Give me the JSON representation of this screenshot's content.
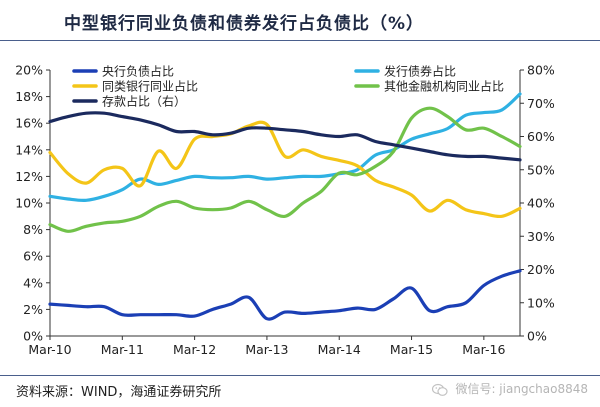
{
  "title": "中型银行同业负债和债券发行占负债比（%）",
  "source": "资料来源：WIND，海通证券研究所",
  "watermark": "微信号: jiangchao8848",
  "chart_data": {
    "type": "line",
    "x_ticks": [
      "Mar-10",
      "Mar-11",
      "Mar-12",
      "Mar-13",
      "Mar-14",
      "Mar-15",
      "Mar-16"
    ],
    "x_range": [
      "2010-03",
      "2016-09"
    ],
    "y_left": {
      "range": [
        0,
        20
      ],
      "ticks": [
        "0%",
        "2%",
        "4%",
        "6%",
        "8%",
        "10%",
        "12%",
        "14%",
        "16%",
        "18%",
        "20%"
      ]
    },
    "y_right": {
      "range": [
        0,
        80
      ],
      "ticks": [
        "0%",
        "10%",
        "20%",
        "30%",
        "40%",
        "50%",
        "60%",
        "70%",
        "80%"
      ]
    },
    "legend_placement": "top",
    "series": [
      {
        "name": "央行负债占比",
        "axis": "left",
        "color": "#1b3fb5",
        "points": [
          [
            "2010-03",
            2.4
          ],
          [
            "2010-06",
            2.3
          ],
          [
            "2010-09",
            2.2
          ],
          [
            "2010-12",
            2.2
          ],
          [
            "2011-03",
            1.6
          ],
          [
            "2011-06",
            1.6
          ],
          [
            "2011-09",
            1.6
          ],
          [
            "2011-12",
            1.6
          ],
          [
            "2012-03",
            1.5
          ],
          [
            "2012-06",
            2.0
          ],
          [
            "2012-09",
            2.4
          ],
          [
            "2012-12",
            2.9
          ],
          [
            "2013-03",
            1.3
          ],
          [
            "2013-06",
            1.8
          ],
          [
            "2013-09",
            1.7
          ],
          [
            "2013-12",
            1.8
          ],
          [
            "2014-03",
            1.9
          ],
          [
            "2014-06",
            2.1
          ],
          [
            "2014-09",
            2.0
          ],
          [
            "2014-12",
            2.8
          ],
          [
            "2015-03",
            3.6
          ],
          [
            "2015-06",
            1.9
          ],
          [
            "2015-09",
            2.2
          ],
          [
            "2015-12",
            2.5
          ],
          [
            "2016-03",
            3.8
          ],
          [
            "2016-06",
            4.5
          ],
          [
            "2016-09",
            4.9
          ]
        ]
      },
      {
        "name": "发行债券占比",
        "axis": "left",
        "color": "#2fb1e3",
        "points": [
          [
            "2010-03",
            10.5
          ],
          [
            "2010-06",
            10.3
          ],
          [
            "2010-09",
            10.2
          ],
          [
            "2010-12",
            10.5
          ],
          [
            "2011-03",
            11.0
          ],
          [
            "2011-06",
            11.8
          ],
          [
            "2011-09",
            11.4
          ],
          [
            "2011-12",
            11.7
          ],
          [
            "2012-03",
            12.0
          ],
          [
            "2012-06",
            11.9
          ],
          [
            "2012-09",
            11.9
          ],
          [
            "2012-12",
            12.0
          ],
          [
            "2013-03",
            11.8
          ],
          [
            "2013-06",
            11.9
          ],
          [
            "2013-09",
            12.0
          ],
          [
            "2013-12",
            12.0
          ],
          [
            "2014-03",
            12.2
          ],
          [
            "2014-06",
            12.5
          ],
          [
            "2014-09",
            13.6
          ],
          [
            "2014-12",
            14.0
          ],
          [
            "2015-03",
            14.8
          ],
          [
            "2015-06",
            15.2
          ],
          [
            "2015-09",
            15.6
          ],
          [
            "2015-12",
            16.6
          ],
          [
            "2016-03",
            16.8
          ],
          [
            "2016-06",
            17.0
          ],
          [
            "2016-09",
            18.2
          ]
        ]
      },
      {
        "name": "同类银行同业占比",
        "axis": "left",
        "color": "#f4c518",
        "points": [
          [
            "2010-03",
            13.8
          ],
          [
            "2010-06",
            12.2
          ],
          [
            "2010-09",
            11.5
          ],
          [
            "2010-12",
            12.5
          ],
          [
            "2011-03",
            12.6
          ],
          [
            "2011-06",
            11.3
          ],
          [
            "2011-09",
            13.9
          ],
          [
            "2011-12",
            12.6
          ],
          [
            "2012-03",
            14.8
          ],
          [
            "2012-06",
            15.0
          ],
          [
            "2012-09",
            15.2
          ],
          [
            "2012-12",
            15.8
          ],
          [
            "2013-03",
            15.9
          ],
          [
            "2013-06",
            13.5
          ],
          [
            "2013-09",
            14.0
          ],
          [
            "2013-12",
            13.5
          ],
          [
            "2014-03",
            13.2
          ],
          [
            "2014-06",
            12.8
          ],
          [
            "2014-09",
            11.7
          ],
          [
            "2014-12",
            11.2
          ],
          [
            "2015-03",
            10.6
          ],
          [
            "2015-06",
            9.4
          ],
          [
            "2015-09",
            10.2
          ],
          [
            "2015-12",
            9.5
          ],
          [
            "2016-03",
            9.2
          ],
          [
            "2016-06",
            9.0
          ],
          [
            "2016-09",
            9.6
          ]
        ]
      },
      {
        "name": "其他金融机构同业占比",
        "axis": "right",
        "color": "#71c24a",
        "points": [
          [
            "2010-03",
            33.5
          ],
          [
            "2010-06",
            31.5
          ],
          [
            "2010-09",
            33.0
          ],
          [
            "2010-12",
            34.0
          ],
          [
            "2011-03",
            34.5
          ],
          [
            "2011-06",
            36.0
          ],
          [
            "2011-09",
            39.0
          ],
          [
            "2011-12",
            40.5
          ],
          [
            "2012-03",
            38.5
          ],
          [
            "2012-06",
            38.0
          ],
          [
            "2012-09",
            38.5
          ],
          [
            "2012-12",
            40.5
          ],
          [
            "2013-03",
            38.0
          ],
          [
            "2013-06",
            36.0
          ],
          [
            "2013-09",
            40.0
          ],
          [
            "2013-12",
            43.5
          ],
          [
            "2014-03",
            49.0
          ],
          [
            "2014-06",
            48.5
          ],
          [
            "2014-09",
            51.0
          ],
          [
            "2014-12",
            55.5
          ],
          [
            "2015-03",
            65.5
          ],
          [
            "2015-06",
            68.5
          ],
          [
            "2015-09",
            66.0
          ],
          [
            "2015-12",
            62.0
          ],
          [
            "2016-03",
            62.5
          ],
          [
            "2016-06",
            60.0
          ],
          [
            "2016-09",
            57.0
          ]
        ]
      },
      {
        "name": "存款占比（右）",
        "axis": "right",
        "color": "#1b2a5e",
        "points": [
          [
            "2010-03",
            64.5
          ],
          [
            "2010-06",
            66.0
          ],
          [
            "2010-09",
            67.0
          ],
          [
            "2010-12",
            67.0
          ],
          [
            "2011-03",
            66.0
          ],
          [
            "2011-06",
            65.0
          ],
          [
            "2011-09",
            63.5
          ],
          [
            "2011-12",
            61.5
          ],
          [
            "2012-03",
            61.5
          ],
          [
            "2012-06",
            60.5
          ],
          [
            "2012-09",
            61.0
          ],
          [
            "2012-12",
            62.5
          ],
          [
            "2013-03",
            62.5
          ],
          [
            "2013-06",
            62.0
          ],
          [
            "2013-09",
            61.5
          ],
          [
            "2013-12",
            60.5
          ],
          [
            "2014-03",
            60.0
          ],
          [
            "2014-06",
            60.5
          ],
          [
            "2014-09",
            58.5
          ],
          [
            "2014-12",
            57.5
          ],
          [
            "2015-03",
            56.5
          ],
          [
            "2015-06",
            55.5
          ],
          [
            "2015-09",
            54.5
          ],
          [
            "2015-12",
            54.0
          ],
          [
            "2016-03",
            54.0
          ],
          [
            "2016-06",
            53.5
          ],
          [
            "2016-09",
            53.0
          ]
        ]
      }
    ]
  }
}
